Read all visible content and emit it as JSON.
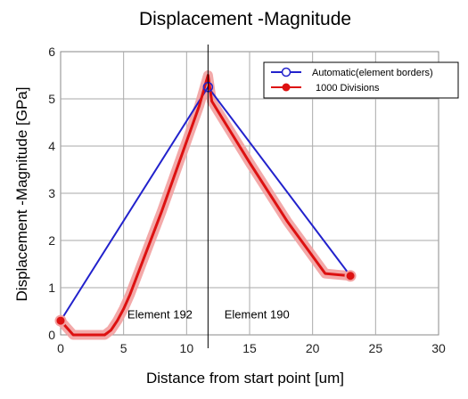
{
  "chart_data": {
    "type": "line",
    "title": "Displacement -Magnitude",
    "xlabel": "Distance from start point [um]",
    "ylabel": "Displacement -Magnitude [GPa]",
    "xlim": [
      0,
      30
    ],
    "ylim": [
      0,
      6
    ],
    "xticks": [
      "0",
      "5",
      "10",
      "15",
      "20",
      "25",
      "30"
    ],
    "yticks": [
      "0",
      "1",
      "2",
      "3",
      "4",
      "5",
      "6"
    ],
    "grid": true,
    "legend_position": "top-right",
    "series": [
      {
        "name": "Automatic(element borders)",
        "color": "#2222cc",
        "marker": "open-circle",
        "x": [
          0,
          11.7,
          23
        ],
        "y": [
          0.3,
          5.25,
          1.25
        ]
      },
      {
        "name": "1000 Divisions",
        "color": "#dd1111",
        "marker": "filled-circle",
        "x": [
          0,
          1,
          2,
          3,
          3.5,
          4,
          4.5,
          5,
          5.5,
          6,
          7,
          8,
          9,
          10,
          11,
          11.7,
          12,
          15,
          18,
          21,
          23
        ],
        "y": [
          0.3,
          0,
          0,
          0,
          0,
          0.1,
          0.3,
          0.55,
          0.85,
          1.2,
          1.9,
          2.6,
          3.35,
          4.1,
          4.85,
          5.5,
          4.95,
          3.65,
          2.4,
          1.3,
          1.25
        ]
      }
    ],
    "annotations": [
      {
        "text": "Element 192",
        "x": 5.3,
        "y": 0.35
      },
      {
        "text": "Element 190",
        "x": 13,
        "y": 0.35
      }
    ],
    "vline_x": 11.7
  }
}
